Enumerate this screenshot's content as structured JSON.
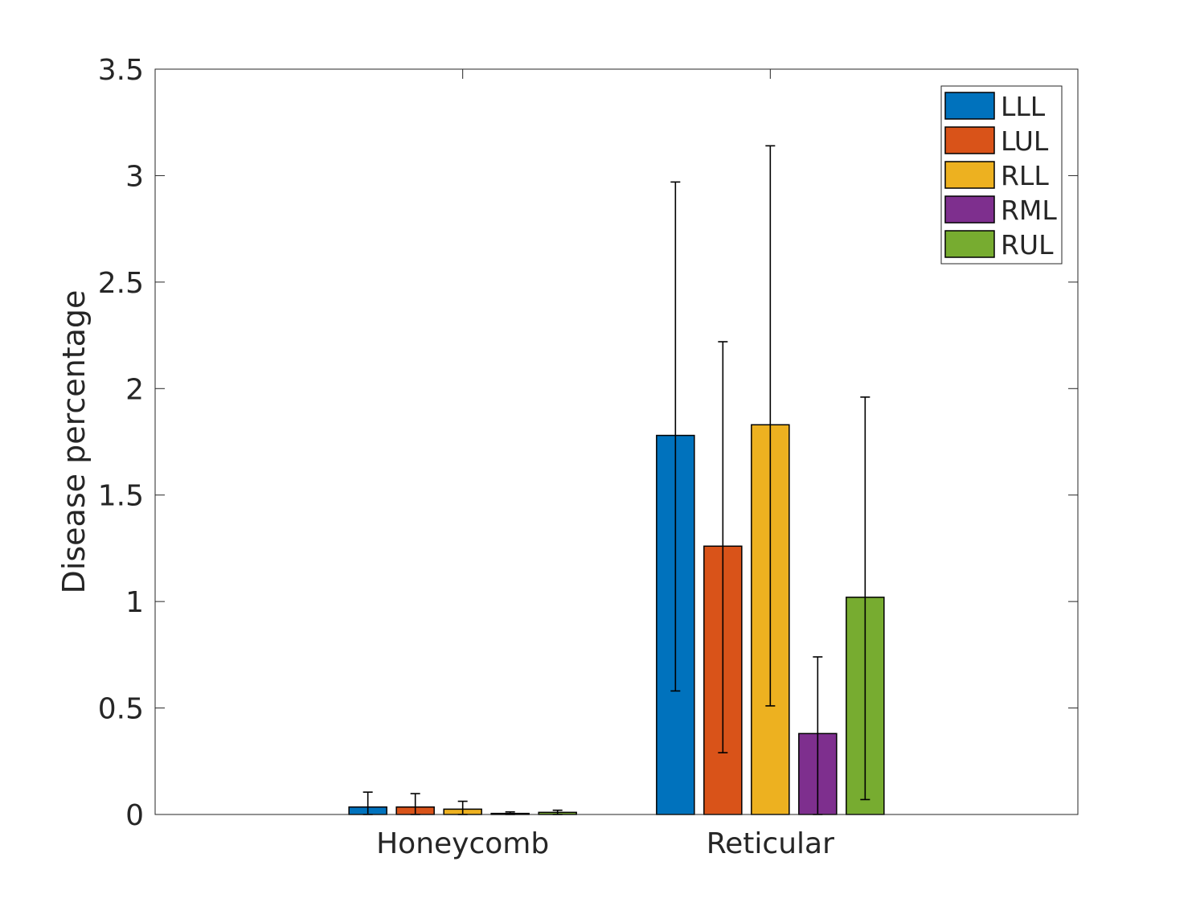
{
  "chart_data": {
    "type": "bar",
    "title": "",
    "xlabel": "",
    "ylabel": "Disease percentage",
    "ylim": [
      0,
      3.5
    ],
    "yticks": [
      "0",
      "0.5",
      "1",
      "1.5",
      "2",
      "2.5",
      "3",
      "3.5"
    ],
    "grid": false,
    "legend_position": "top-right",
    "categories": [
      "Honeycomb",
      "Reticular"
    ],
    "series": [
      {
        "name": "LLL",
        "color": "#0072BD",
        "values": [
          0.035,
          1.78
        ],
        "err_low": [
          0.0,
          0.58
        ],
        "err_high": [
          0.105,
          2.97
        ]
      },
      {
        "name": "LUL",
        "color": "#D95319",
        "values": [
          0.035,
          1.26
        ],
        "err_low": [
          0.0,
          0.29
        ],
        "err_high": [
          0.098,
          2.22
        ]
      },
      {
        "name": "RLL",
        "color": "#EDB120",
        "values": [
          0.025,
          1.83
        ],
        "err_low": [
          0.0,
          0.51
        ],
        "err_high": [
          0.062,
          3.14
        ]
      },
      {
        "name": "RML",
        "color": "#7E2F8E",
        "values": [
          0.005,
          0.38
        ],
        "err_low": [
          0.0,
          0.0
        ],
        "err_high": [
          0.012,
          0.74
        ]
      },
      {
        "name": "RUL",
        "color": "#77AC30",
        "values": [
          0.01,
          1.02
        ],
        "err_low": [
          0.0,
          0.07
        ],
        "err_high": [
          0.02,
          1.96
        ]
      }
    ]
  }
}
